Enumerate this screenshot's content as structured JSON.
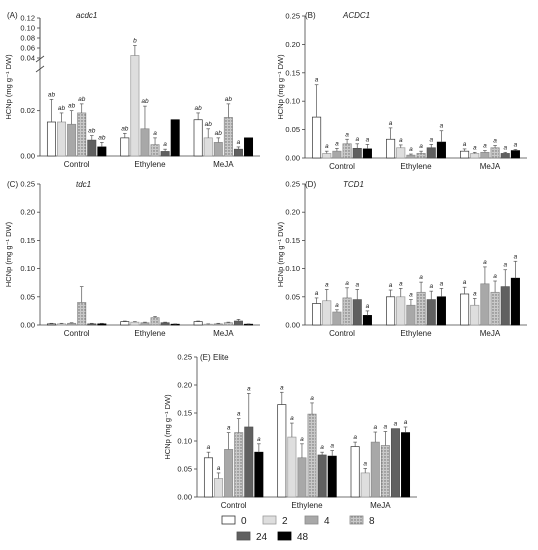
{
  "ylabel": "HCNp (mg g⁻¹ DW)",
  "categories": [
    "Control",
    "Ethylene",
    "MeJA"
  ],
  "legend": {
    "labels": [
      "0",
      "2",
      "4",
      "8",
      "24",
      "48"
    ],
    "styles": [
      "white",
      "light",
      "mid",
      "dotted",
      "dark",
      "black"
    ]
  },
  "chart_data": [
    {
      "type": "bar",
      "panel": "(A)",
      "gene": "acdc1",
      "italic_gene": true,
      "categories": [
        "Control",
        "Ethylene",
        "MeJA"
      ],
      "ylim": [
        0,
        0.03
      ],
      "axis_break": true,
      "yticks": [
        "0.00",
        "0.02",
        "0.04",
        "0.06",
        "0.08",
        "0.10",
        "0.12"
      ],
      "series": [
        {
          "name": "0",
          "values": [
            0.015,
            0.008,
            0.016
          ],
          "errors": [
            0.01,
            0.002,
            0.003
          ],
          "sig": [
            "ab",
            "ab",
            "ab"
          ]
        },
        {
          "name": "2",
          "values": [
            0.015,
            0.045,
            0.008
          ],
          "errors": [
            0.004,
            0.02,
            0.004
          ],
          "sig": [
            "ab",
            "b",
            "ab"
          ]
        },
        {
          "name": "4",
          "values": [
            0.014,
            0.012,
            0.006
          ],
          "errors": [
            0.006,
            0.01,
            0.002
          ],
          "sig": [
            "ab",
            "ab",
            "ab"
          ]
        },
        {
          "name": "8",
          "values": [
            0.019,
            0.005,
            0.017
          ],
          "errors": [
            0.004,
            0.003,
            0.006
          ],
          "sig": [
            "ab",
            "a",
            "ab"
          ]
        },
        {
          "name": "24",
          "values": [
            0.007,
            0.002,
            0.003
          ],
          "errors": [
            0.002,
            0.001,
            0.001
          ],
          "sig": [
            "ab",
            "a",
            "a"
          ]
        },
        {
          "name": "48",
          "values": [
            0.004,
            0.016,
            0.008
          ],
          "errors": [
            0.002,
            0.0,
            0.0
          ],
          "sig": [
            "ab",
            "",
            ""
          ]
        }
      ]
    },
    {
      "type": "bar",
      "panel": "(B)",
      "gene": "ACDC1",
      "italic_gene": true,
      "categories": [
        "Control",
        "Ethylene",
        "MeJA"
      ],
      "ylim": [
        0,
        0.25
      ],
      "yticks": [
        "0.00",
        "0.05",
        "0.10",
        "0.15",
        "0.20",
        "0.25"
      ],
      "series": [
        {
          "name": "0",
          "values": [
            0.072,
            0.033,
            0.012
          ],
          "errors": [
            0.057,
            0.02,
            0.004
          ],
          "sig": [
            "a",
            "a",
            "a"
          ]
        },
        {
          "name": "2",
          "values": [
            0.008,
            0.018,
            0.008
          ],
          "errors": [
            0.004,
            0.005,
            0.002
          ],
          "sig": [
            "a",
            "a",
            "a"
          ]
        },
        {
          "name": "4",
          "values": [
            0.012,
            0.005,
            0.01
          ],
          "errors": [
            0.005,
            0.002,
            0.003
          ],
          "sig": [
            "a",
            "a",
            "a"
          ]
        },
        {
          "name": "8",
          "values": [
            0.025,
            0.008,
            0.018
          ],
          "errors": [
            0.008,
            0.004,
            0.004
          ],
          "sig": [
            "a",
            "a",
            "a"
          ]
        },
        {
          "name": "24",
          "values": [
            0.017,
            0.018,
            0.008
          ],
          "errors": [
            0.008,
            0.006,
            0.002
          ],
          "sig": [
            "a",
            "a",
            "a"
          ]
        },
        {
          "name": "48",
          "values": [
            0.016,
            0.028,
            0.013
          ],
          "errors": [
            0.008,
            0.02,
            0.002
          ],
          "sig": [
            "a",
            "a",
            "a"
          ]
        }
      ]
    },
    {
      "type": "bar",
      "panel": "(C)",
      "gene": "tdc1",
      "italic_gene": true,
      "categories": [
        "Control",
        "Ethylene",
        "MeJA"
      ],
      "ylim": [
        0,
        0.25
      ],
      "yticks": [
        "0.00",
        "0.05",
        "0.10",
        "0.15",
        "0.20",
        "0.25"
      ],
      "series": [
        {
          "name": "0",
          "values": [
            0.002,
            0.006,
            0.006
          ],
          "errors": [
            0.001,
            0.001,
            0.001
          ],
          "sig": [
            "",
            "",
            ""
          ]
        },
        {
          "name": "2",
          "values": [
            0.002,
            0.005,
            0.001
          ],
          "errors": [
            0.001,
            0.001,
            0.001
          ],
          "sig": [
            "",
            "",
            ""
          ]
        },
        {
          "name": "4",
          "values": [
            0.003,
            0.004,
            0.002
          ],
          "errors": [
            0.001,
            0.001,
            0.001
          ],
          "sig": [
            "",
            "",
            ""
          ]
        },
        {
          "name": "8",
          "values": [
            0.04,
            0.013,
            0.004
          ],
          "errors": [
            0.028,
            0.002,
            0.001
          ],
          "sig": [
            "",
            "",
            ""
          ]
        },
        {
          "name": "24",
          "values": [
            0.002,
            0.004,
            0.007
          ],
          "errors": [
            0.001,
            0.001,
            0.003
          ],
          "sig": [
            "",
            "",
            ""
          ]
        },
        {
          "name": "48",
          "values": [
            0.002,
            0.001,
            0.001
          ],
          "errors": [
            0.001,
            0.001,
            0.001
          ],
          "sig": [
            "",
            "",
            ""
          ]
        }
      ]
    },
    {
      "type": "bar",
      "panel": "(D)",
      "gene": "TCD1",
      "italic_gene": true,
      "categories": [
        "Control",
        "Ethylene",
        "MeJA"
      ],
      "ylim": [
        0,
        0.25
      ],
      "yticks": [
        "0.00",
        "0.05",
        "0.10",
        "0.15",
        "0.20",
        "0.25"
      ],
      "series": [
        {
          "name": "0",
          "values": [
            0.038,
            0.05,
            0.055
          ],
          "errors": [
            0.01,
            0.012,
            0.012
          ],
          "sig": [
            "a",
            "a",
            "a"
          ]
        },
        {
          "name": "2",
          "values": [
            0.043,
            0.05,
            0.035
          ],
          "errors": [
            0.02,
            0.015,
            0.012
          ],
          "sig": [
            "a",
            "a",
            "a"
          ]
        },
        {
          "name": "4",
          "values": [
            0.023,
            0.035,
            0.073
          ],
          "errors": [
            0.004,
            0.01,
            0.03
          ],
          "sig": [
            "a",
            "a",
            "a"
          ]
        },
        {
          "name": "8",
          "values": [
            0.048,
            0.058,
            0.058
          ],
          "errors": [
            0.018,
            0.018,
            0.02
          ],
          "sig": [
            "a",
            "a",
            "a"
          ]
        },
        {
          "name": "24",
          "values": [
            0.045,
            0.045,
            0.068
          ],
          "errors": [
            0.018,
            0.015,
            0.03
          ],
          "sig": [
            "a",
            "a",
            "a"
          ]
        },
        {
          "name": "48",
          "values": [
            0.017,
            0.05,
            0.083
          ],
          "errors": [
            0.008,
            0.015,
            0.03
          ],
          "sig": [
            "a",
            "a",
            "a"
          ]
        }
      ]
    },
    {
      "type": "bar",
      "panel": "(E)",
      "gene": "Elite",
      "italic_gene": false,
      "categories": [
        "Control",
        "Ethylene",
        "MeJA"
      ],
      "ylim": [
        0,
        0.25
      ],
      "yticks": [
        "0.00",
        "0.05",
        "0.10",
        "0.15",
        "0.20",
        "0.25"
      ],
      "series": [
        {
          "name": "0",
          "values": [
            0.07,
            0.165,
            0.09
          ],
          "errors": [
            0.01,
            0.022,
            0.008
          ],
          "sig": [
            "a",
            "a",
            "a"
          ]
        },
        {
          "name": "2",
          "values": [
            0.033,
            0.107,
            0.043
          ],
          "errors": [
            0.01,
            0.025,
            0.008
          ],
          "sig": [
            "a",
            "a",
            "a"
          ]
        },
        {
          "name": "4",
          "values": [
            0.085,
            0.07,
            0.098
          ],
          "errors": [
            0.03,
            0.025,
            0.018
          ],
          "sig": [
            "a",
            "a",
            "a"
          ]
        },
        {
          "name": "8",
          "values": [
            0.115,
            0.148,
            0.092
          ],
          "errors": [
            0.025,
            0.02,
            0.025
          ],
          "sig": [
            "a",
            "a",
            "a"
          ]
        },
        {
          "name": "24",
          "values": [
            0.125,
            0.075,
            0.122
          ],
          "errors": [
            0.06,
            0.005,
            0.0
          ],
          "sig": [
            "a",
            "a",
            "a"
          ]
        },
        {
          "name": "48",
          "values": [
            0.08,
            0.073,
            0.115
          ],
          "errors": [
            0.015,
            0.01,
            0.01
          ],
          "sig": [
            "a",
            "a",
            "a"
          ]
        }
      ]
    }
  ]
}
